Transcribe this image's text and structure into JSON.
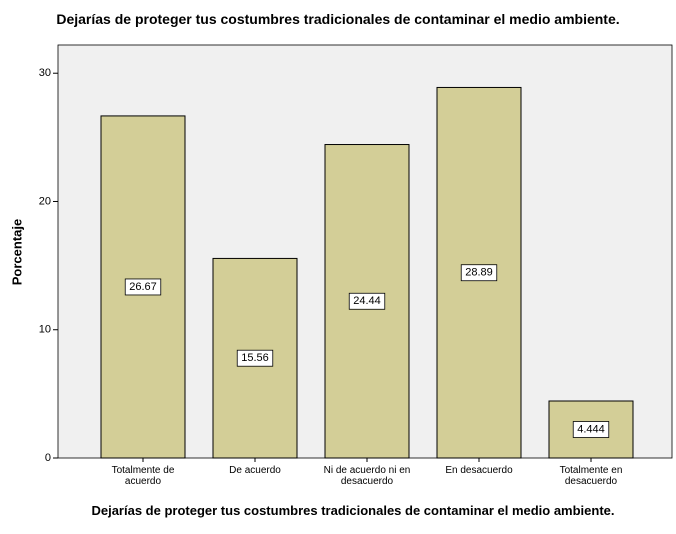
{
  "chart_data": {
    "type": "bar",
    "title": "Dejarías de proteger tus costumbres tradicionales de contaminar el medio ambiente.",
    "xlabel": "Dejarías de proteger tus costumbres tradicionales de contaminar el medio ambiente.",
    "ylabel": "Porcentaje",
    "categories": [
      "Totalmente de acuerdo",
      "De acuerdo",
      "Ni de acuerdo ni en desacuerdo",
      "En desacuerdo",
      "Totalmente en desacuerdo"
    ],
    "values": [
      26.67,
      15.56,
      24.44,
      28.89,
      4.444
    ],
    "color": "#d3ce97",
    "ylim": [
      0,
      32.2
    ],
    "yticks": [
      0,
      10,
      20,
      30
    ],
    "grid": false
  }
}
